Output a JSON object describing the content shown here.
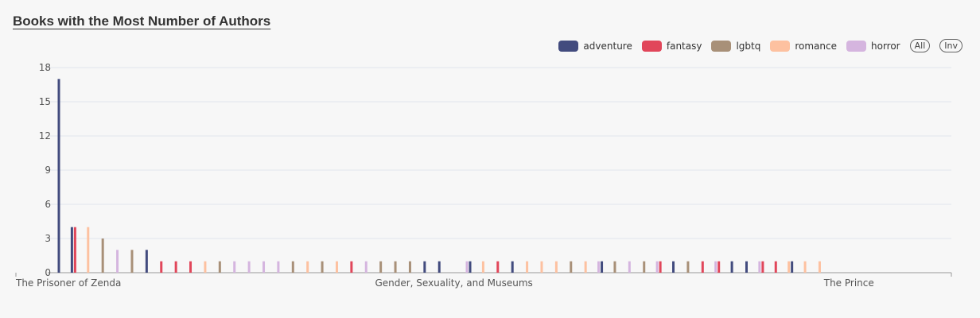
{
  "header": {
    "title": "Books with the Most Number of Authors"
  },
  "legend": {
    "items": [
      {
        "label": "adventure",
        "color": "#424b7e"
      },
      {
        "label": "fantasy",
        "color": "#e1465a"
      },
      {
        "label": "lgbtq",
        "color": "#a89078"
      },
      {
        "label": "romance",
        "color": "#fdc1a0"
      },
      {
        "label": "horror",
        "color": "#d5b5df"
      }
    ],
    "all_label": "All",
    "inv_label": "Inv"
  },
  "chart_data": {
    "type": "bar",
    "title": "Books with the Most Number of Authors",
    "xlabel": "",
    "ylabel": "",
    "ylim": [
      0,
      18
    ],
    "yticks": [
      0,
      3,
      6,
      9,
      12,
      15,
      18
    ],
    "grid": true,
    "legend_position": "top-right",
    "x_tick_labels": [
      {
        "label": "The Prisoner of Zenda",
        "index": 0
      },
      {
        "label": "Gender, Sexuality, and Museums",
        "index": 27
      },
      {
        "label": "The Prince",
        "index": 54
      }
    ],
    "category_count": 62,
    "bars": [
      {
        "index": 0,
        "series": "adventure",
        "value": 17
      },
      {
        "index": 1,
        "series": "adventure",
        "value": 4
      },
      {
        "index": 1,
        "series": "fantasy",
        "value": 4
      },
      {
        "index": 2,
        "series": "romance",
        "value": 4
      },
      {
        "index": 3,
        "series": "lgbtq",
        "value": 3
      },
      {
        "index": 4,
        "series": "horror",
        "value": 2
      },
      {
        "index": 5,
        "series": "lgbtq",
        "value": 2
      },
      {
        "index": 6,
        "series": "adventure",
        "value": 2
      },
      {
        "index": 7,
        "series": "fantasy",
        "value": 1
      },
      {
        "index": 8,
        "series": "fantasy",
        "value": 1
      },
      {
        "index": 9,
        "series": "fantasy",
        "value": 1
      },
      {
        "index": 10,
        "series": "romance",
        "value": 1
      },
      {
        "index": 11,
        "series": "lgbtq",
        "value": 1
      },
      {
        "index": 12,
        "series": "horror",
        "value": 1
      },
      {
        "index": 13,
        "series": "horror",
        "value": 1
      },
      {
        "index": 14,
        "series": "horror",
        "value": 1
      },
      {
        "index": 15,
        "series": "horror",
        "value": 1
      },
      {
        "index": 16,
        "series": "lgbtq",
        "value": 1
      },
      {
        "index": 17,
        "series": "romance",
        "value": 1
      },
      {
        "index": 18,
        "series": "lgbtq",
        "value": 1
      },
      {
        "index": 19,
        "series": "romance",
        "value": 1
      },
      {
        "index": 20,
        "series": "fantasy",
        "value": 1
      },
      {
        "index": 21,
        "series": "horror",
        "value": 1
      },
      {
        "index": 22,
        "series": "lgbtq",
        "value": 1
      },
      {
        "index": 23,
        "series": "lgbtq",
        "value": 1
      },
      {
        "index": 24,
        "series": "lgbtq",
        "value": 1
      },
      {
        "index": 25,
        "series": "adventure",
        "value": 1
      },
      {
        "index": 26,
        "series": "adventure",
        "value": 1
      },
      {
        "index": 28,
        "series": "horror",
        "value": 1
      },
      {
        "index": 28,
        "series": "adventure",
        "value": 1
      },
      {
        "index": 29,
        "series": "romance",
        "value": 1
      },
      {
        "index": 30,
        "series": "fantasy",
        "value": 1
      },
      {
        "index": 31,
        "series": "adventure",
        "value": 1
      },
      {
        "index": 32,
        "series": "romance",
        "value": 1
      },
      {
        "index": 33,
        "series": "romance",
        "value": 1
      },
      {
        "index": 34,
        "series": "romance",
        "value": 1
      },
      {
        "index": 35,
        "series": "lgbtq",
        "value": 1
      },
      {
        "index": 36,
        "series": "romance",
        "value": 1
      },
      {
        "index": 37,
        "series": "horror",
        "value": 1
      },
      {
        "index": 37,
        "series": "adventure",
        "value": 1
      },
      {
        "index": 38,
        "series": "lgbtq",
        "value": 1
      },
      {
        "index": 39,
        "series": "horror",
        "value": 1
      },
      {
        "index": 40,
        "series": "lgbtq",
        "value": 1
      },
      {
        "index": 41,
        "series": "horror",
        "value": 1
      },
      {
        "index": 41,
        "series": "fantasy",
        "value": 1
      },
      {
        "index": 42,
        "series": "adventure",
        "value": 1
      },
      {
        "index": 43,
        "series": "lgbtq",
        "value": 1
      },
      {
        "index": 44,
        "series": "fantasy",
        "value": 1
      },
      {
        "index": 45,
        "series": "horror",
        "value": 1
      },
      {
        "index": 45,
        "series": "fantasy",
        "value": 1
      },
      {
        "index": 46,
        "series": "adventure",
        "value": 1
      },
      {
        "index": 47,
        "series": "adventure",
        "value": 1
      },
      {
        "index": 48,
        "series": "horror",
        "value": 1
      },
      {
        "index": 48,
        "series": "fantasy",
        "value": 1
      },
      {
        "index": 49,
        "series": "fantasy",
        "value": 1
      },
      {
        "index": 50,
        "series": "romance",
        "value": 1
      },
      {
        "index": 50,
        "series": "adventure",
        "value": 1
      },
      {
        "index": 51,
        "series": "romance",
        "value": 1
      },
      {
        "index": 52,
        "series": "romance",
        "value": 1
      }
    ]
  }
}
